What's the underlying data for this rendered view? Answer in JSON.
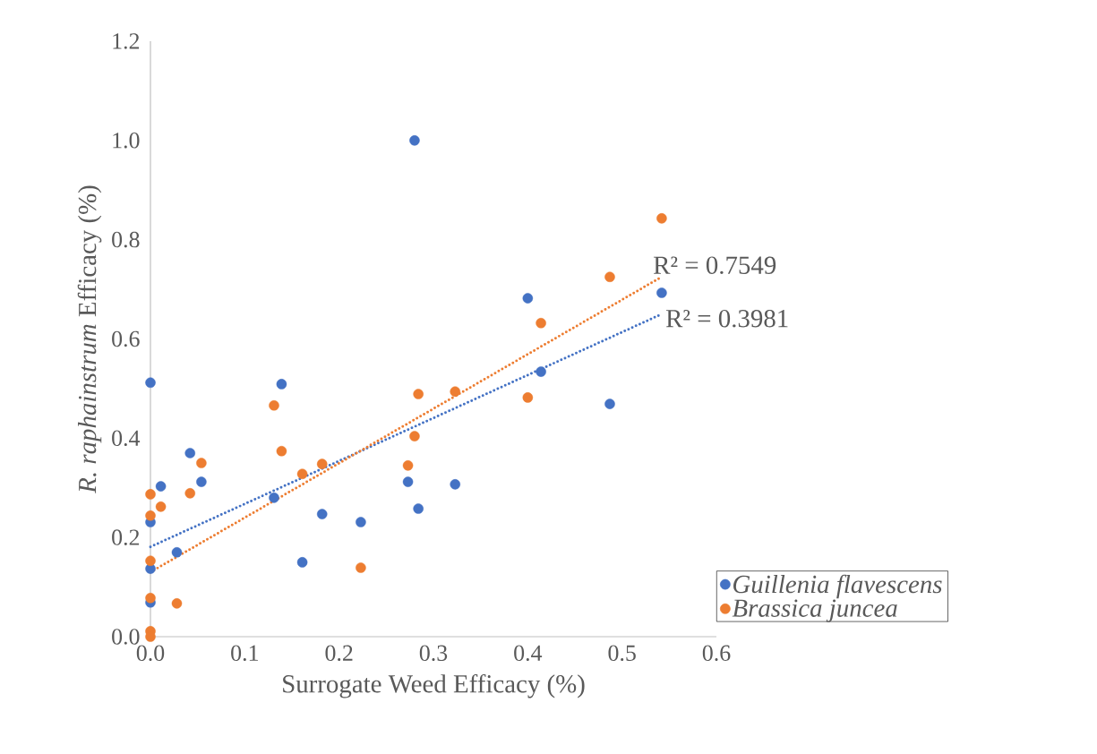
{
  "chart_data": {
    "type": "scatter",
    "xlabel": "Surrogate Weed Efficacy (%)",
    "ylabel": "*R. raphainstrum* Efficacy  (%)",
    "xlim": [
      0,
      0.6
    ],
    "ylim": [
      0,
      1.2
    ],
    "xticks": [
      {
        "value": 0,
        "label": "0.0"
      },
      0.1,
      0.2,
      0.3,
      0.4,
      0.5,
      0.6
    ],
    "yticks": [
      {
        "value": 0,
        "label": "0.0"
      },
      0.2,
      0.4,
      0.6,
      0.8,
      {
        "value": 1.0,
        "label": "1.0"
      },
      1.2
    ],
    "grid": false,
    "legend": "bottom right",
    "marker": "circle",
    "series": [
      {
        "name": "Guillenia flavescens",
        "color": "#4472c4",
        "x": [
          0,
          0,
          0,
          0,
          0.011,
          0.028,
          0.042,
          0.054,
          0.131,
          0.139,
          0.161,
          0.182,
          0.223,
          0.273,
          0.28,
          0.284,
          0.323,
          0.4,
          0.414,
          0.487,
          0.542
        ],
        "values": [
          0.512,
          0.231,
          0.137,
          0.069,
          0.303,
          0.17,
          0.37,
          0.312,
          0.28,
          0.509,
          0.15,
          0.247,
          0.231,
          0.312,
          1.0,
          0.258,
          0.307,
          0.682,
          0.534,
          0.469,
          0.693
        ]
      },
      {
        "name": "Brassica juncea",
        "color": "#ed7d31",
        "x": [
          0,
          0,
          0,
          0,
          0,
          0,
          0.011,
          0.028,
          0.042,
          0.054,
          0.131,
          0.139,
          0.161,
          0.182,
          0.223,
          0.273,
          0.28,
          0.284,
          0.323,
          0.4,
          0.414,
          0.487,
          0.542
        ],
        "values": [
          0.287,
          0.244,
          0.153,
          0.078,
          0.011,
          0,
          0.262,
          0.067,
          0.289,
          0.35,
          0.466,
          0.374,
          0.328,
          0.348,
          0.139,
          0.345,
          0.404,
          0.489,
          0.494,
          0.482,
          0.632,
          0.725,
          0.843
        ]
      },
      {
        "type": "line",
        "color": "#4472c4",
        "line_style": "dotted",
        "marker": "none",
        "x": [
          0,
          0.542
        ],
        "values": [
          0.181,
          0.65
        ]
      },
      {
        "type": "line",
        "color": "#ed7d31",
        "line_style": "dotted",
        "marker": "none",
        "x": [
          0,
          0.542
        ],
        "values": [
          0.13,
          0.725
        ]
      }
    ],
    "annotations": [
      {
        "text": "R² = 0.7549",
        "x": 0.542,
        "y": 0.725
      },
      {
        "text": "R² = 0.3981",
        "x": 0.542,
        "y": 0.65
      }
    ]
  }
}
